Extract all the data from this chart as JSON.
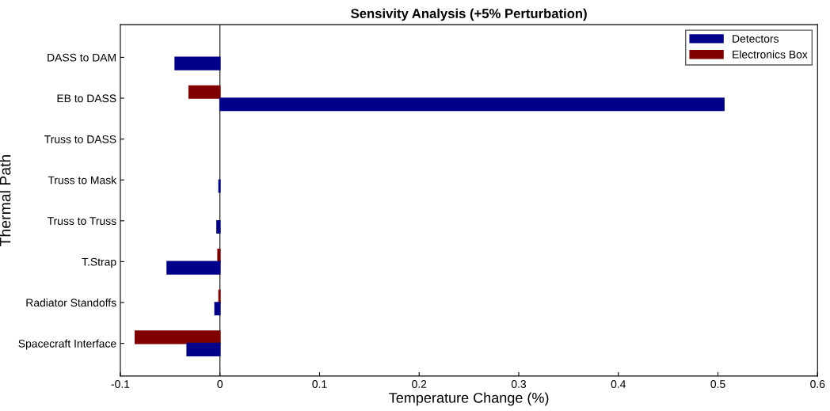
{
  "chart_data": {
    "type": "bar",
    "orientation": "horizontal",
    "title": "Sensivity Analysis (+5% Perturbation)",
    "xlabel": "Temperature Change (%)",
    "ylabel": "Thermal Path",
    "categories": [
      "DASS to DAM",
      "EB to DASS",
      "Truss to DASS",
      "Truss to Mask",
      "Truss to Truss",
      "T.Strap",
      "Radiator Standoffs",
      "Spacecraft Interface"
    ],
    "series": [
      {
        "name": "Electronics Box",
        "color": "#800000",
        "values": [
          null,
          -0.031,
          null,
          null,
          null,
          -0.002,
          -0.001,
          -0.085
        ]
      },
      {
        "name": "Detectors",
        "color": "#00008b",
        "values": [
          -0.045,
          0.506,
          null,
          -0.001,
          -0.003,
          -0.053,
          -0.005,
          -0.033
        ]
      }
    ],
    "xlim": [
      -0.1,
      0.6
    ],
    "xticks": [
      -0.1,
      0,
      0.1,
      0.2,
      0.3,
      0.4,
      0.5,
      0.6
    ],
    "ref_lines": [
      {
        "axis": "x",
        "value": 0,
        "color": "#000000"
      }
    ],
    "legend": "top right",
    "grid": false
  }
}
